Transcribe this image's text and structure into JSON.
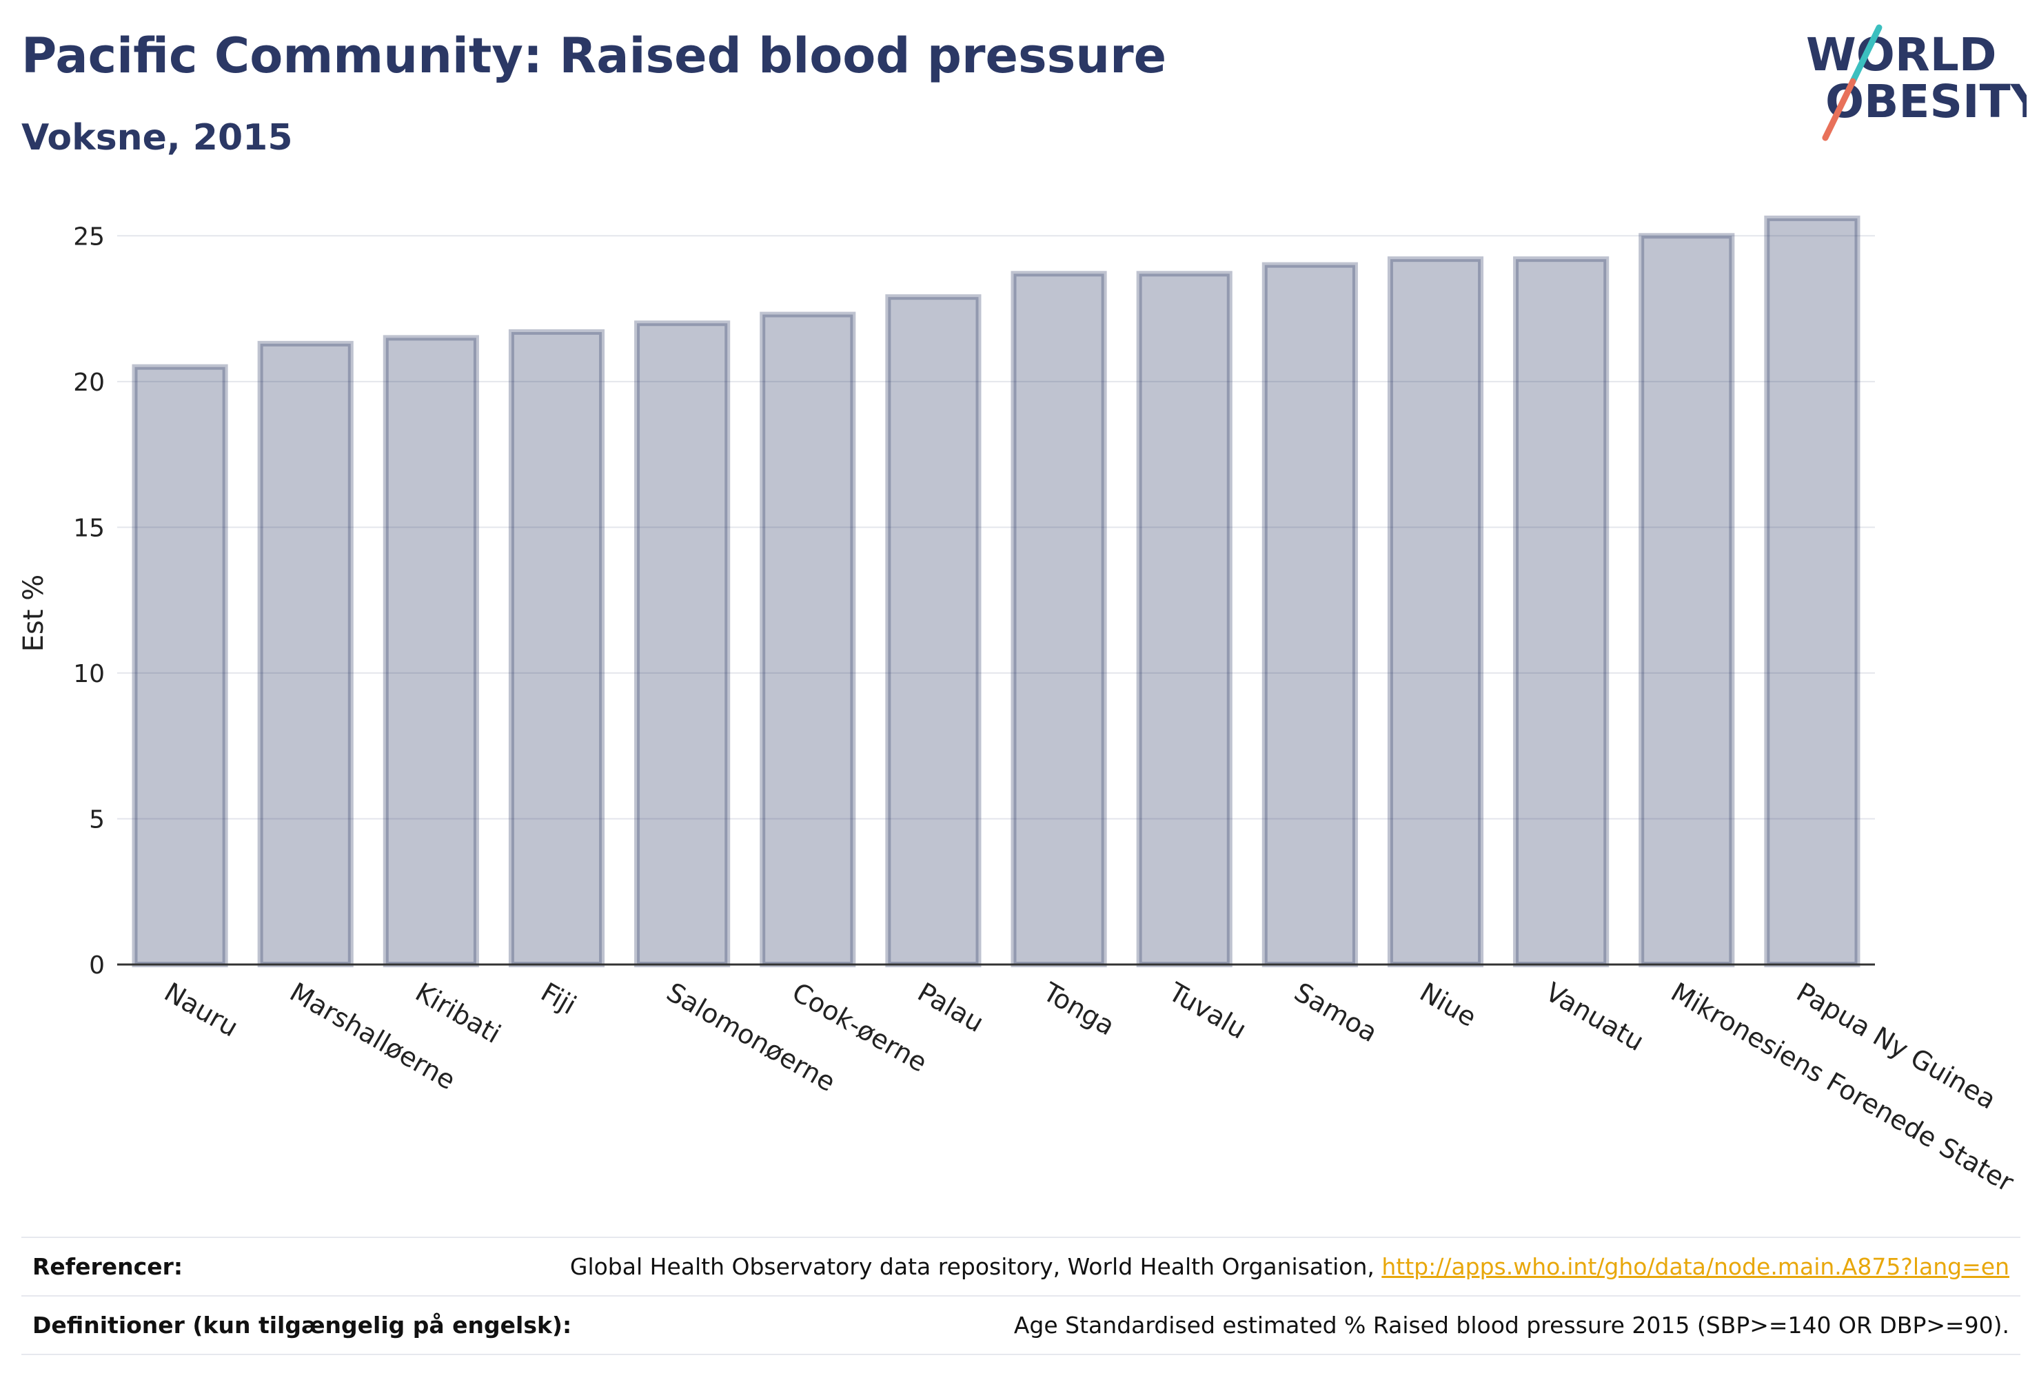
{
  "header": {
    "title": "Pacific Community: Raised blood pressure",
    "subtitle": "Voksne, 2015"
  },
  "logo": {
    "line1": "WORLD",
    "line2": "OBESITY",
    "text_color": "#2b3865",
    "slash_colors": [
      "#3bbfbf",
      "#e8715a"
    ]
  },
  "chart_data": {
    "type": "bar",
    "categories": [
      "Nauru",
      "Marshalløerne",
      "Kiribati",
      "Fiji",
      "Salomonøerne",
      "Cook-øerne",
      "Palau",
      "Tonga",
      "Tuvalu",
      "Samoa",
      "Niue",
      "Vanuatu",
      "Mikronesiens Forenede Stater",
      "Papua Ny Guinea"
    ],
    "values": [
      20.5,
      21.3,
      21.5,
      21.7,
      22.0,
      22.3,
      22.9,
      23.7,
      23.7,
      24.0,
      24.2,
      24.2,
      25.0,
      25.6
    ],
    "xlabel": "",
    "ylabel": "Est %",
    "ylim": [
      0,
      26
    ],
    "yticks": [
      0,
      5,
      10,
      15,
      20,
      25
    ],
    "grid": true,
    "bar_fill": "#2b3865",
    "bar_fill_opacity": 0.3,
    "bar_stroke": "#2b3865",
    "bar_stroke_opacity": 0.3
  },
  "footer": {
    "references_label": "Referencer:",
    "references_text": "Global Health Observatory data repository, World Health Organisation, ",
    "references_link": "http://apps.who.int/gho/data/node.main.A875?lang=en",
    "definitions_label": "Definitioner (kun tilgængelig på engelsk):",
    "definitions_text": "Age Standardised estimated % Raised blood pressure 2015 (SBP>=140 OR DBP>=90)."
  }
}
